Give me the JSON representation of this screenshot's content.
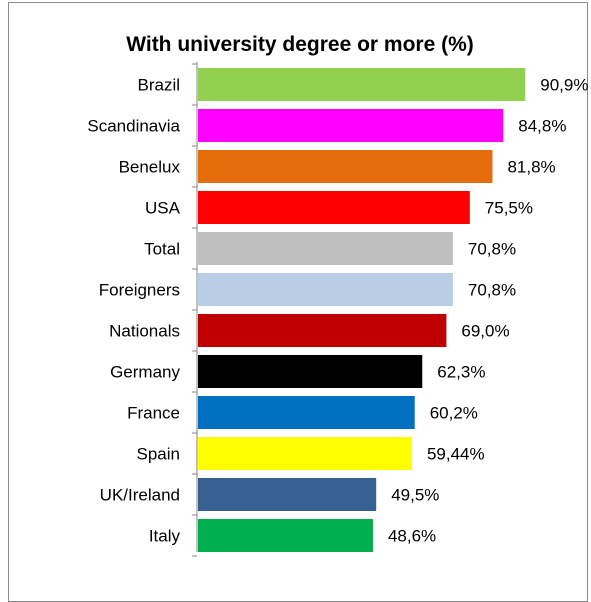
{
  "chart_data": {
    "type": "bar",
    "orientation": "horizontal",
    "title": "With university degree or more (%)",
    "xlabel": "",
    "ylabel": "",
    "grid": false,
    "legend": "none",
    "categories": [
      "Brazil",
      "Scandinavia",
      "Benelux",
      "USA",
      "Total",
      "Foreigners",
      "Nationals",
      "Germany",
      "France",
      "Spain",
      "UK/Ireland",
      "Italy"
    ],
    "values": [
      90.9,
      84.8,
      81.8,
      75.5,
      70.8,
      70.8,
      69.0,
      62.3,
      60.2,
      59.44,
      49.5,
      48.6
    ],
    "value_labels": [
      "90,9%",
      "84,8%",
      "81,8%",
      "75,5%",
      "70,8%",
      "70,8%",
      "69,0%",
      "62,3%",
      "60,2%",
      "59,44%",
      "49,5%",
      "48,6%"
    ],
    "colors": [
      "#92d050",
      "#ff00ff",
      "#e46c0a",
      "#ff0000",
      "#bfbfbf",
      "#b9cde5",
      "#c00000",
      "#000000",
      "#0070c0",
      "#ffff00",
      "#376092",
      "#00b050"
    ],
    "xlim": [
      0,
      100
    ]
  }
}
